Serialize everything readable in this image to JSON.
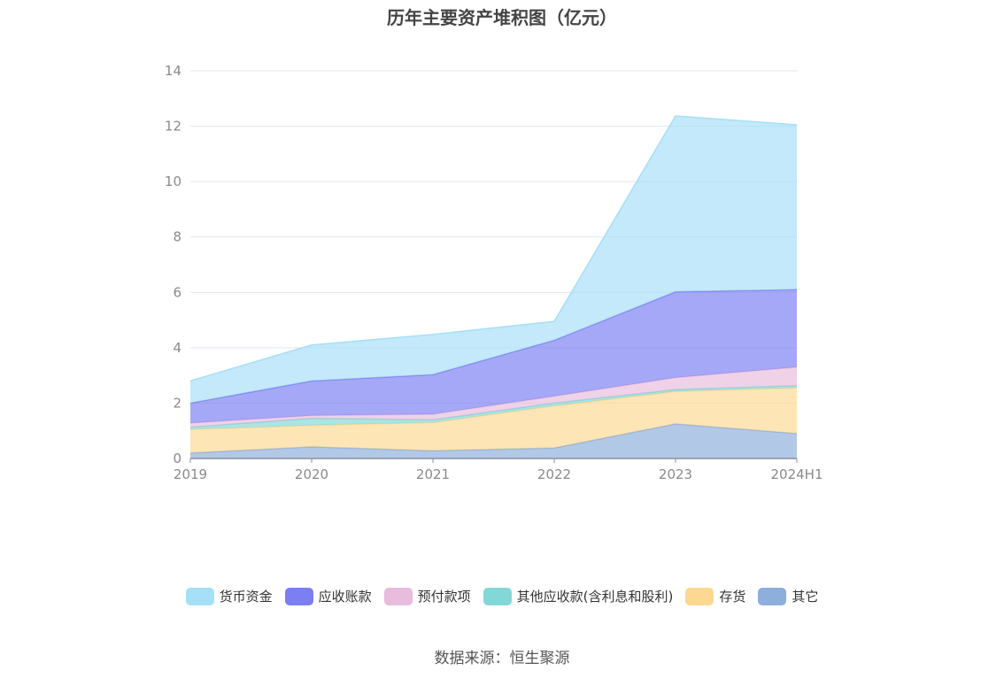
{
  "title": "历年主要资产堆积图（亿元）",
  "source": "数据来源：恒生聚源",
  "chart_data": {
    "type": "area",
    "stacked": true,
    "title": "历年主要资产堆积图（亿元）",
    "categories": [
      "2019",
      "2020",
      "2021",
      "2022",
      "2023",
      "2024H1"
    ],
    "ylim": [
      0,
      14
    ],
    "yticks": [
      "0",
      "2",
      "4",
      "6",
      "8",
      "10",
      "12",
      "14"
    ],
    "grid": true,
    "legend_position": "bottom",
    "series": [
      {
        "name": "其它",
        "color": "#8eaedc",
        "values": [
          0.2,
          0.42,
          0.28,
          0.38,
          1.25,
          0.9
        ]
      },
      {
        "name": "存货",
        "color": "#fdd892",
        "values": [
          0.85,
          0.78,
          1.02,
          1.52,
          1.17,
          1.65
        ]
      },
      {
        "name": "其他应收款(含利息和股利)",
        "color": "#84d7d7",
        "values": [
          0.08,
          0.25,
          0.1,
          0.1,
          0.07,
          0.08
        ]
      },
      {
        "name": "预付款项",
        "color": "#e8bcdc",
        "values": [
          0.15,
          0.1,
          0.2,
          0.25,
          0.43,
          0.67
        ]
      },
      {
        "name": "应收账款",
        "color": "#7b7ff2",
        "values": [
          0.72,
          1.25,
          1.43,
          2.02,
          3.1,
          2.8
        ]
      },
      {
        "name": "货币资金",
        "color": "#a6dff8",
        "values": [
          0.8,
          1.3,
          1.45,
          0.68,
          6.35,
          5.95
        ]
      }
    ]
  },
  "legend": [
    {
      "label": "货币资金",
      "color": "#a6dff8"
    },
    {
      "label": "应收账款",
      "color": "#7b7ff2"
    },
    {
      "label": "预付款项",
      "color": "#e8bcdc"
    },
    {
      "label": "其他应收款(含利息和股利)",
      "color": "#84d7d7"
    },
    {
      "label": "存货",
      "color": "#fdd892"
    },
    {
      "label": "其它",
      "color": "#8eaedc"
    }
  ]
}
